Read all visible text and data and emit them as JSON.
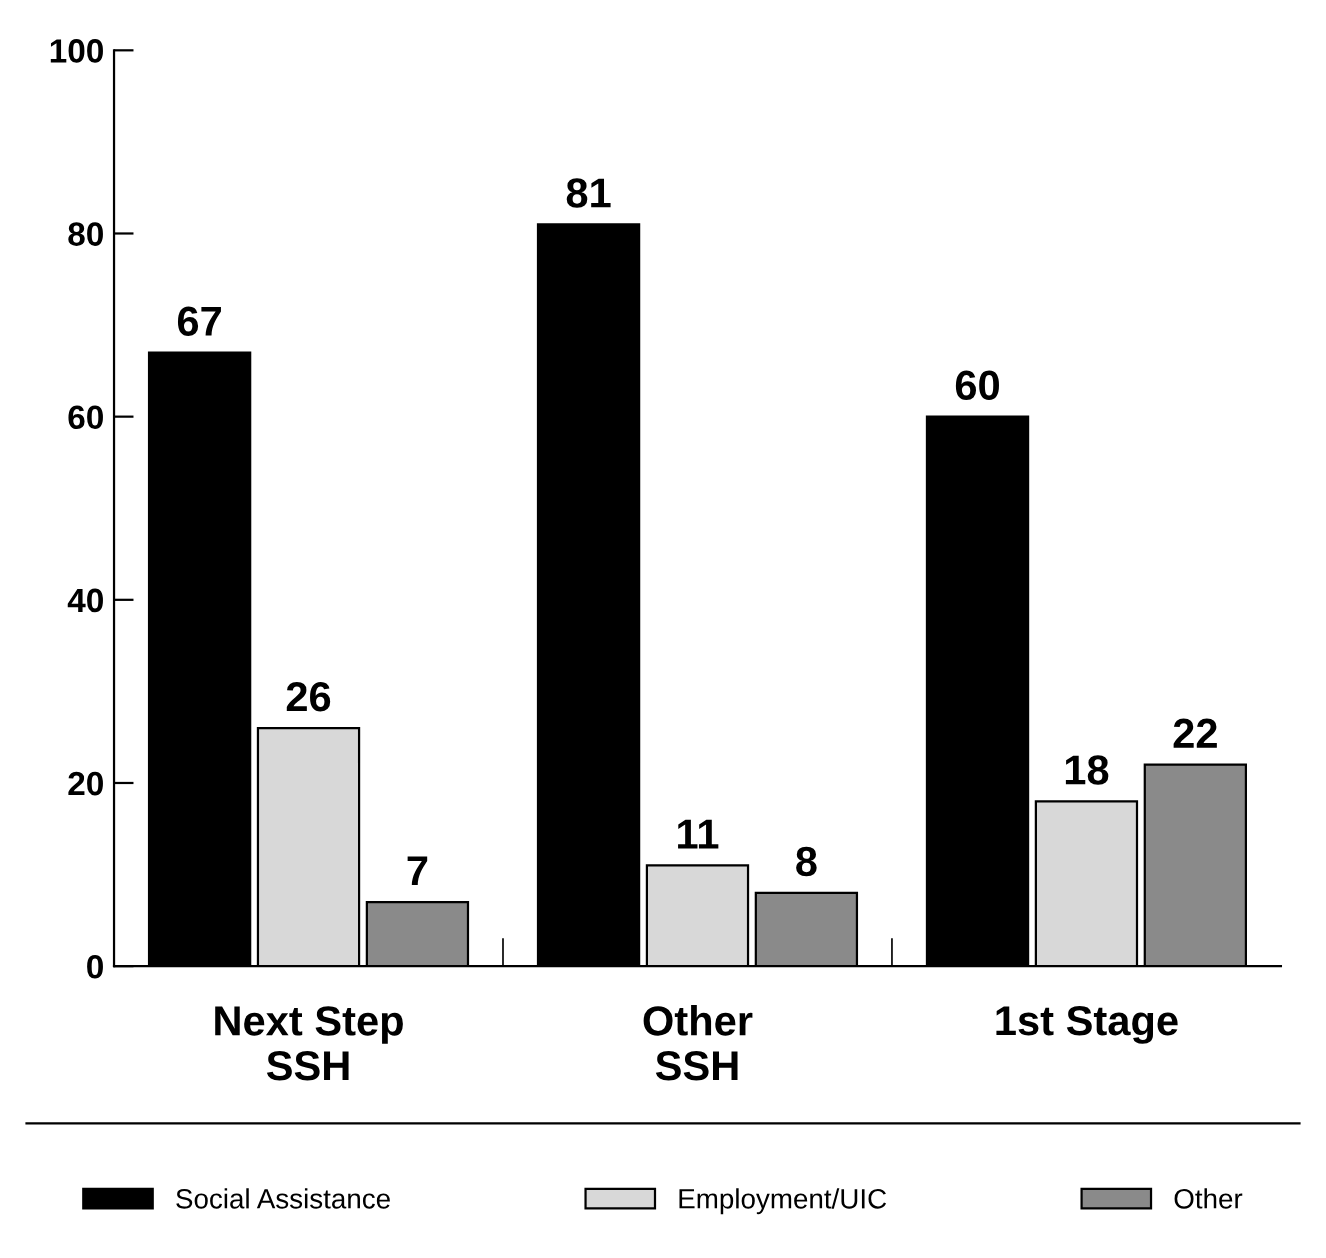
{
  "chart_data": {
    "type": "bar",
    "categories": [
      "Next Step\nSSH",
      "Other\nSSH",
      "1st Stage"
    ],
    "series": [
      {
        "name": "Social Assistance",
        "color": "#000000",
        "values": [
          67,
          81,
          60
        ]
      },
      {
        "name": "Employment/UIC",
        "color": "#d8d8d8",
        "values": [
          26,
          11,
          18
        ]
      },
      {
        "name": "Other",
        "color": "#8a8a8a",
        "values": [
          7,
          8,
          22
        ]
      }
    ],
    "ylim": [
      0,
      100
    ],
    "yticks": [
      0,
      20,
      40,
      60,
      80,
      100
    ],
    "grid": false,
    "legend": "bottom",
    "data_labels": true
  }
}
